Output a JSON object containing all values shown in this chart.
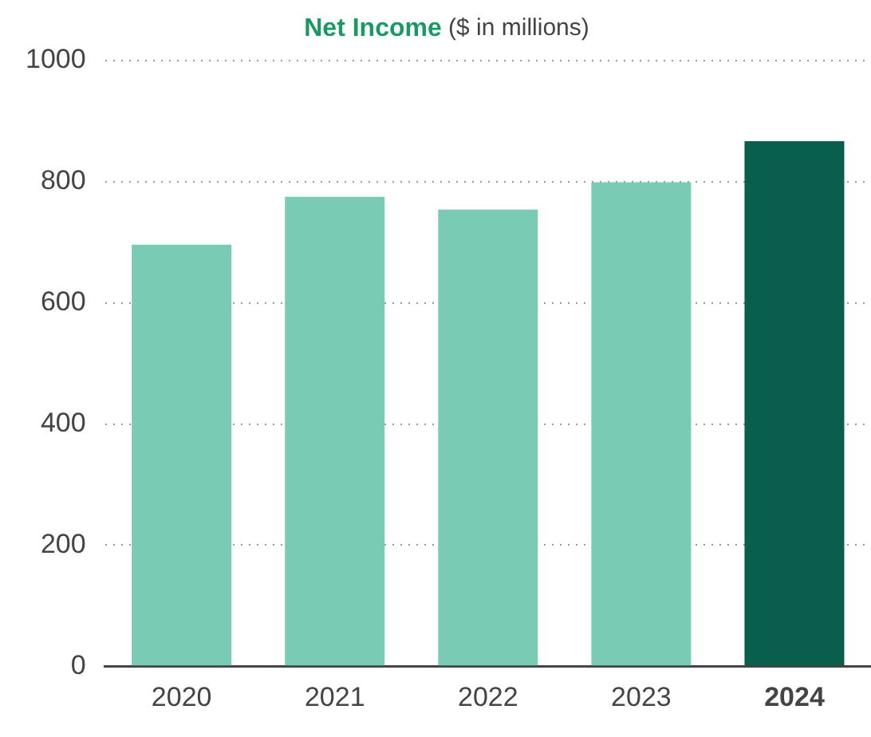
{
  "chart_data": {
    "type": "bar",
    "title": "Net Income",
    "subtitle": "($ in millions)",
    "categories": [
      "2020",
      "2021",
      "2022",
      "2023",
      "2024"
    ],
    "values": [
      696,
      775,
      754,
      799,
      867
    ],
    "colors": [
      "#79cbb4",
      "#79cbb4",
      "#79cbb4",
      "#79cbb4",
      "#0a5e4d"
    ],
    "ylim": [
      0,
      1000
    ],
    "yticks": [
      0,
      200,
      400,
      600,
      800,
      1000
    ],
    "grid": "y",
    "legend": false
  }
}
